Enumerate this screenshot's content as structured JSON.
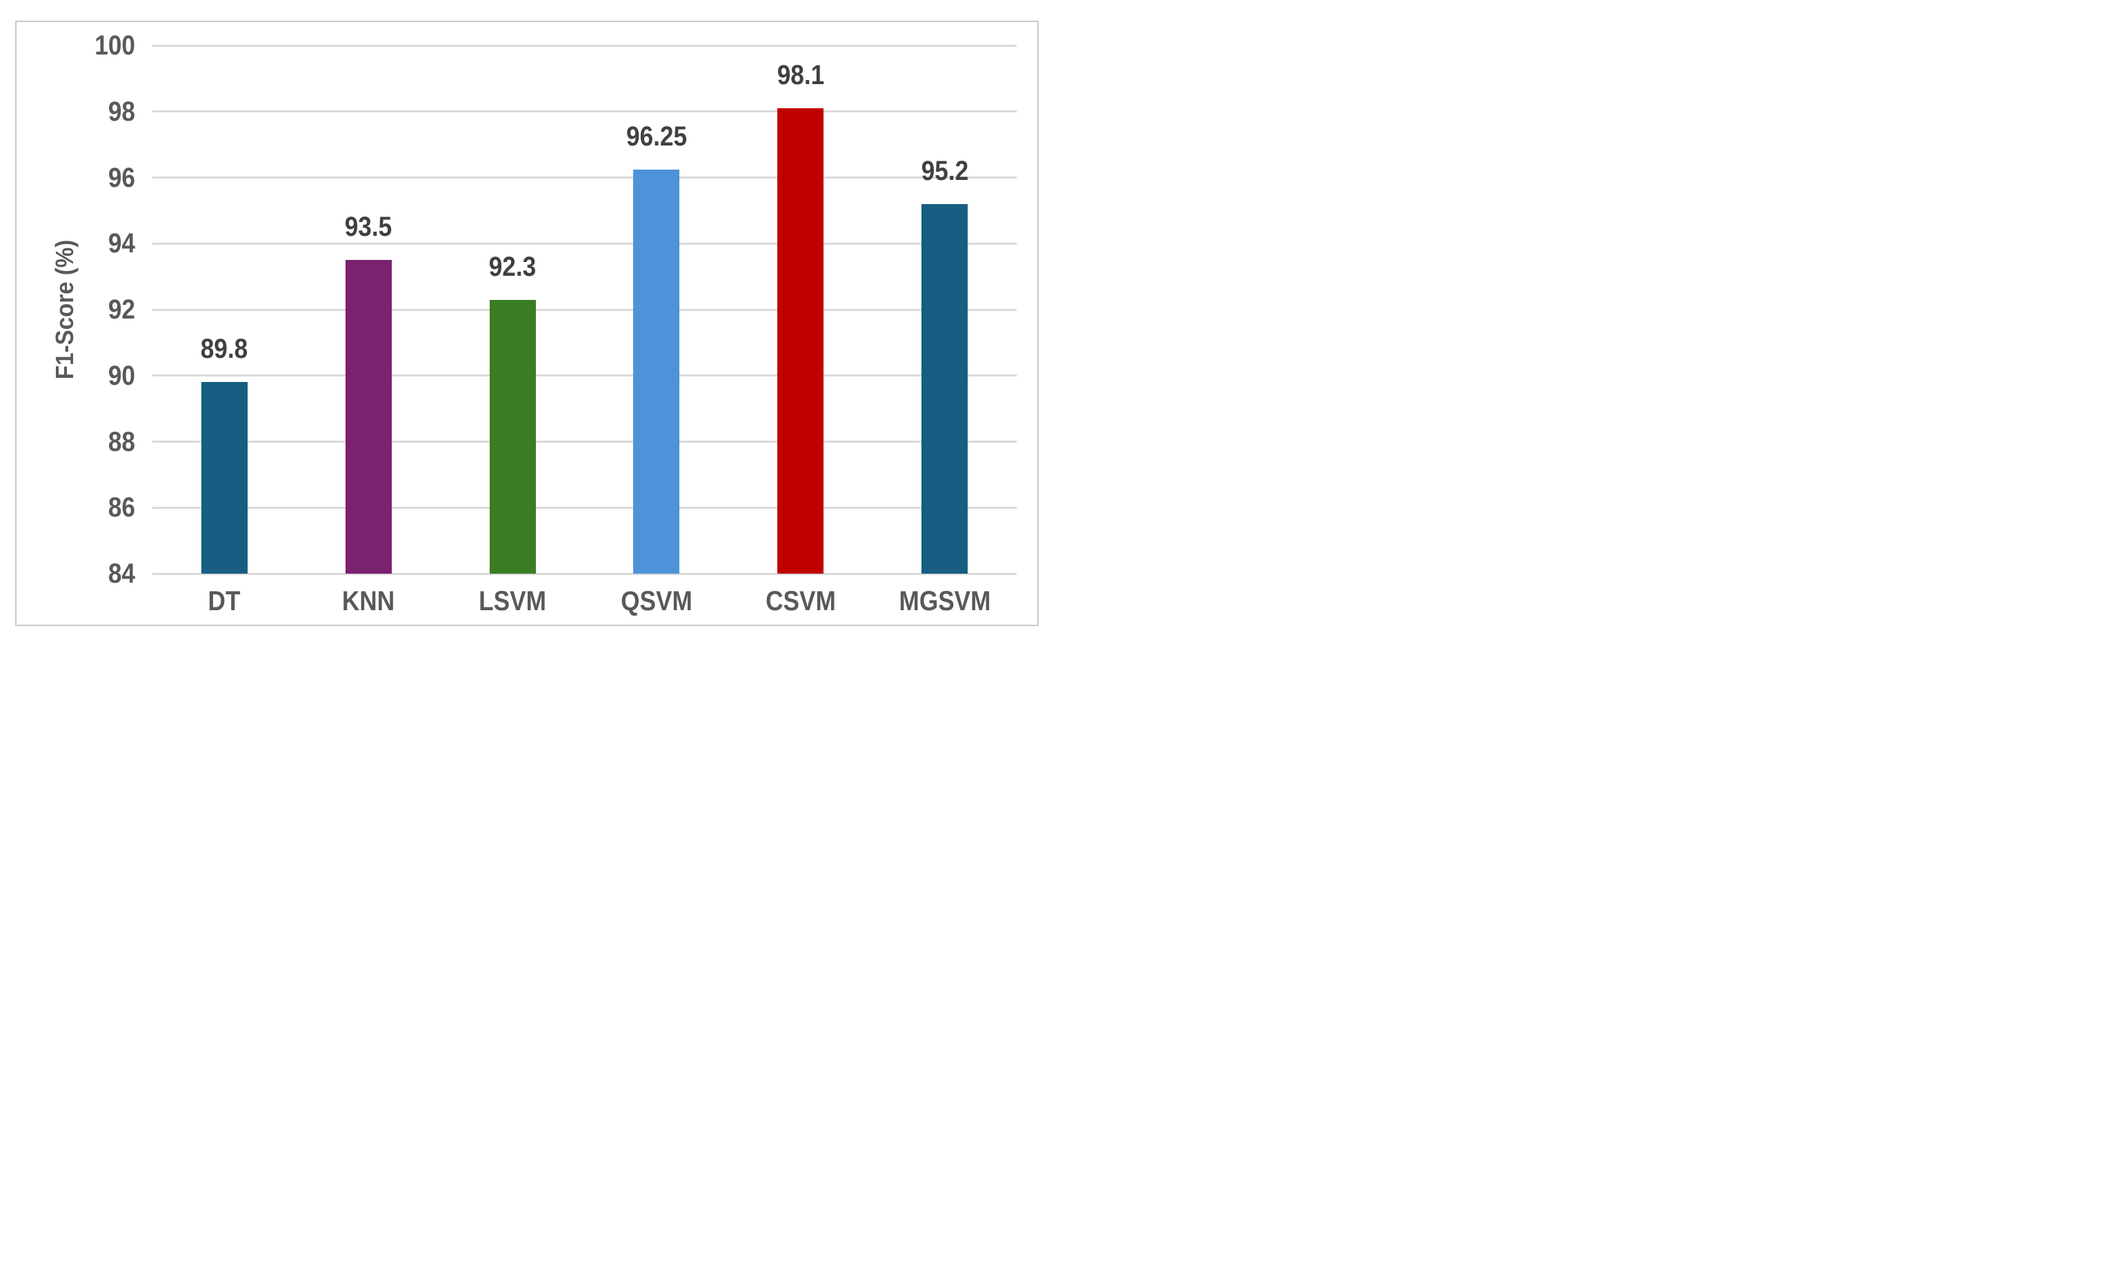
{
  "chart_data": {
    "type": "bar",
    "title": "",
    "xlabel": "",
    "ylabel": "F1-Score (%)",
    "categories": [
      "DT",
      "KNN",
      "LSVM",
      "QSVM",
      "CSVM",
      "MGSVM"
    ],
    "values": [
      89.8,
      93.5,
      92.3,
      96.25,
      98.1,
      95.2
    ],
    "value_labels": [
      "89.8",
      "93.5",
      "92.3",
      "96.25",
      "98.1",
      "95.2"
    ],
    "bar_colors": [
      "#175E82",
      "#7A2170",
      "#3A7D22",
      "#4E93D9",
      "#C00000",
      "#175E82"
    ],
    "ylim": [
      84,
      100
    ],
    "yticks": [
      84,
      86,
      88,
      90,
      92,
      94,
      96,
      98,
      100
    ],
    "grid": true,
    "legend_position": "none",
    "colors": {
      "gridline": "#D9D9D9",
      "axis_label": "#595959",
      "value_label": "#404040",
      "figure_border": "#C9C9C9",
      "background": "#FFFFFF"
    }
  }
}
